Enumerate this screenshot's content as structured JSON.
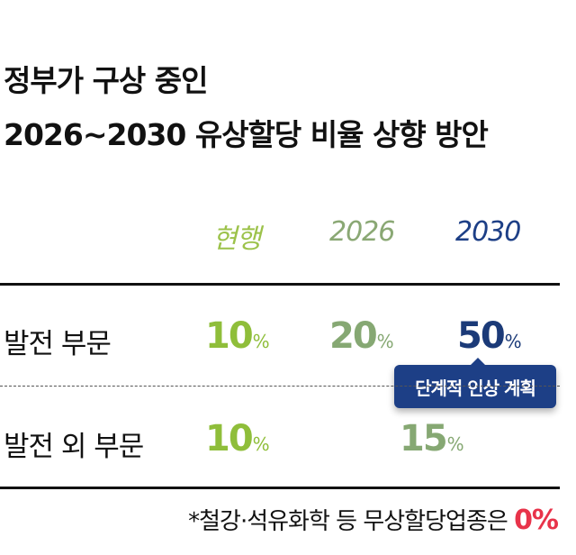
{
  "title": {
    "line1": "정부가 구상 중인",
    "line2": "2026~2030 유상할당 비율 상향 방안"
  },
  "columns": {
    "current": "현행",
    "y2026": "2026",
    "y2030": "2030"
  },
  "rows": [
    {
      "label": "발전 부문",
      "current": {
        "num": "10",
        "unit": "%"
      },
      "y2026": {
        "num": "20",
        "unit": "%"
      },
      "y2030": {
        "num": "50",
        "unit": "%"
      }
    },
    {
      "label": "발전 외 부문",
      "current": {
        "num": "10",
        "unit": "%"
      },
      "y2030": {
        "num": "15",
        "unit": "%"
      }
    }
  ],
  "badge": "단계적 인상 계획",
  "footnote": {
    "text": "*철강·석유화학 등 무상할당업종은 ",
    "highlight": "0%"
  },
  "colors": {
    "current": "#8fbe3a",
    "y2026": "#86a873",
    "y2030": "#1b3a78",
    "badge_bg": "#1d3f86",
    "highlight": "#e8334a"
  }
}
